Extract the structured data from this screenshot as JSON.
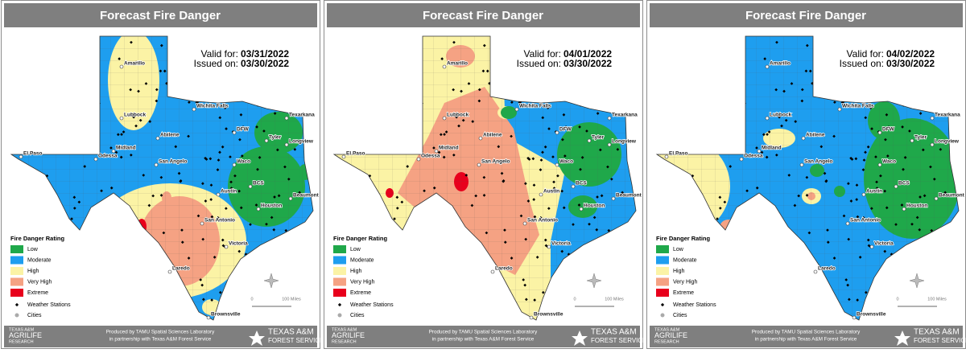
{
  "panels": [
    {
      "title": "Forecast Fire Danger",
      "valid_label": "Valid for:",
      "valid_date": "03/31/2022",
      "issued_label": "Issued on:",
      "issued_date": "03/30/2022"
    },
    {
      "title": "Forecast Fire Danger",
      "valid_label": "Valid for:",
      "valid_date": "04/01/2022",
      "issued_label": "Issued on:",
      "issued_date": "03/30/2022"
    },
    {
      "title": "Forecast Fire Danger",
      "valid_label": "Valid for:",
      "valid_date": "04/02/2022",
      "issued_label": "Issued on:",
      "issued_date": "03/30/2022"
    }
  ],
  "legend": {
    "title": "Fire Danger Rating",
    "items": [
      {
        "label": "Low",
        "color": "#1fa84a"
      },
      {
        "label": "Moderate",
        "color": "#1e9eef"
      },
      {
        "label": "High",
        "color": "#fbf3a5"
      },
      {
        "label": "Very High",
        "color": "#f5a283"
      },
      {
        "label": "Extreme",
        "color": "#e8001c"
      }
    ],
    "stations": "Weather Stations",
    "cities": "Cities"
  },
  "scale": {
    "zero": "0",
    "distance": "100 Miles"
  },
  "cities": [
    "Amarillo",
    "Lubbock",
    "Wichita Falls",
    "Texarkana",
    "DFW",
    "Longview",
    "Tyler",
    "Abilene",
    "Midland",
    "Odessa",
    "El Paso",
    "San Angelo",
    "Waco",
    "Austin",
    "BCS",
    "Beaumont",
    "Houston",
    "San Antonio",
    "Victoria",
    "Laredo",
    "Brownsville"
  ],
  "footer": {
    "line1": "Produced by TAMU Spatial Sciences Laboratory",
    "line2": "in partnership with Texas A&M Forest Service",
    "left_logo": [
      "TEXAS A&M",
      "AGRILIFE",
      "RESEARCH"
    ],
    "right_logo": [
      "TEXAS A&M",
      "FOREST SERVICE"
    ]
  }
}
